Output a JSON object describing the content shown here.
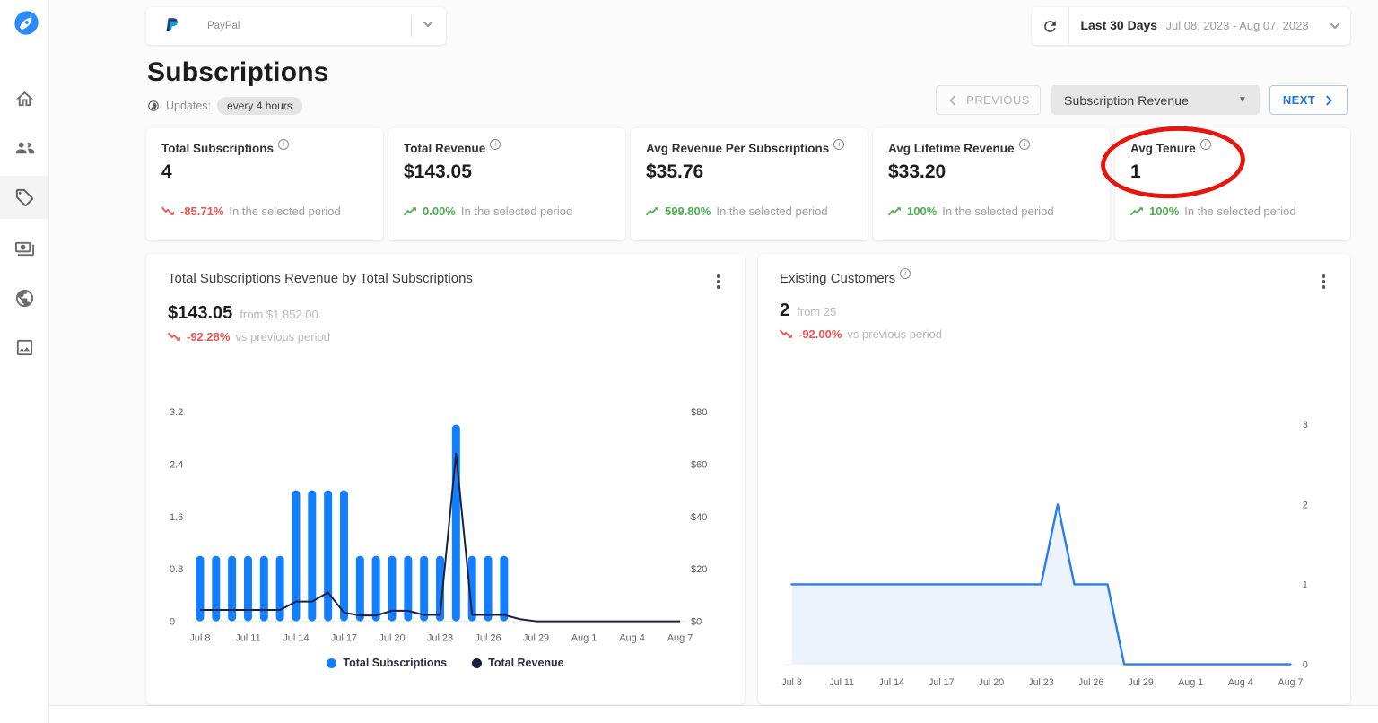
{
  "topbar": {
    "source": {
      "name": "PayPal"
    },
    "daterange": {
      "preset": "Last 30 Days",
      "range": "Jul 08, 2023 - Aug 07, 2023"
    }
  },
  "header": {
    "title": "Subscriptions",
    "updates_label": "Updates:",
    "updates_value": "every 4 hours"
  },
  "controls": {
    "previous_label": "PREVIOUS",
    "metric_selector": "Subscription Revenue",
    "next_label": "NEXT"
  },
  "kpis": [
    {
      "title": "Total Subscriptions",
      "value": "4",
      "trend": "-85.71%",
      "trend_dir": "down",
      "trend_icon": "#trend-down",
      "note": "In the selected period"
    },
    {
      "title": "Total Revenue",
      "value": "$143.05",
      "trend": "0.00%",
      "trend_dir": "up",
      "trend_icon": "#trend-up",
      "note": "In the selected period"
    },
    {
      "title": "Avg Revenue Per Subscriptions",
      "value": "$35.76",
      "trend": "599.80%",
      "trend_dir": "up",
      "trend_icon": "#trend-up",
      "note": "In the selected period"
    },
    {
      "title": "Avg Lifetime Revenue",
      "value": "$33.20",
      "trend": "100%",
      "trend_dir": "up",
      "trend_icon": "#trend-up",
      "note": "In the selected period"
    },
    {
      "title": "Avg Tenure",
      "value": "1",
      "trend": "100%",
      "trend_dir": "up",
      "trend_icon": "#trend-up",
      "note": "In the selected period"
    }
  ],
  "annotation": {
    "type": "hand-drawn-ellipse",
    "target": "Avg Tenure KPI",
    "color": "#e8150e"
  },
  "charts": {
    "left": {
      "title": "Total Subscriptions Revenue by Total Subscriptions",
      "value": "$143.05",
      "compare": "from $1,852.00",
      "trend": "-92.28%",
      "trend_dir": "down",
      "trend_icon": "#trend-down",
      "trend_note": "vs previous period"
    },
    "right": {
      "title": "Existing Customers",
      "value": "2",
      "compare": "from 25",
      "trend": "-92.00%",
      "trend_dir": "down",
      "trend_icon": "#trend-down",
      "trend_note": "vs previous period"
    }
  },
  "chart_data": [
    {
      "type": "bar+line",
      "title": "Total Subscriptions Revenue by Total Subscriptions",
      "x": [
        "Jul 8",
        "Jul 9",
        "Jul 10",
        "Jul 11",
        "Jul 12",
        "Jul 13",
        "Jul 14",
        "Jul 15",
        "Jul 16",
        "Jul 17",
        "Jul 18",
        "Jul 19",
        "Jul 20",
        "Jul 21",
        "Jul 22",
        "Jul 23",
        "Jul 24",
        "Jul 25",
        "Jul 26",
        "Jul 27",
        "Jul 28",
        "Jul 29",
        "Jul 30",
        "Jul 31",
        "Aug 1",
        "Aug 2",
        "Aug 3",
        "Aug 4",
        "Aug 5",
        "Aug 6",
        "Aug 7"
      ],
      "x_tick_every": 3,
      "series": [
        {
          "name": "Total Subscriptions",
          "type": "bar",
          "axis": "left",
          "color": "#117fff",
          "values": [
            1,
            1,
            1,
            1,
            1,
            1,
            2,
            2,
            2,
            2,
            1,
            1,
            1,
            1,
            1,
            1,
            3,
            1,
            1,
            1,
            0,
            0,
            0,
            0,
            0,
            0,
            0,
            0,
            0,
            0,
            0
          ]
        },
        {
          "name": "Total Revenue",
          "type": "line",
          "axis": "right",
          "color": "#1b2142",
          "values": [
            4.3,
            4.3,
            4.3,
            4.3,
            4.3,
            4.3,
            7.5,
            7.5,
            11,
            3.3,
            2.2,
            2.2,
            4,
            4,
            2.4,
            2.4,
            64,
            2.4,
            2.4,
            2.4,
            0.8,
            0,
            0,
            0,
            0,
            0,
            0,
            0,
            0,
            0,
            0
          ]
        }
      ],
      "left_axis": {
        "ticks": [
          0,
          0.8,
          1.6,
          2.4,
          3.2
        ],
        "max": 3.2
      },
      "right_axis": {
        "tick_labels": [
          "$0",
          "$20",
          "$40",
          "$60",
          "$80"
        ],
        "tick_values": [
          0,
          20,
          40,
          60,
          80
        ],
        "max": 80
      },
      "legend_position": "bottom",
      "grid": false
    },
    {
      "type": "area",
      "title": "Existing Customers",
      "x": [
        "Jul 8",
        "Jul 9",
        "Jul 10",
        "Jul 11",
        "Jul 12",
        "Jul 13",
        "Jul 14",
        "Jul 15",
        "Jul 16",
        "Jul 17",
        "Jul 18",
        "Jul 19",
        "Jul 20",
        "Jul 21",
        "Jul 22",
        "Jul 23",
        "Jul 24",
        "Jul 25",
        "Jul 26",
        "Jul 27",
        "Jul 28",
        "Jul 29",
        "Jul 30",
        "Jul 31",
        "Aug 1",
        "Aug 2",
        "Aug 3",
        "Aug 4",
        "Aug 5",
        "Aug 6",
        "Aug 7"
      ],
      "x_tick_every": 3,
      "series": [
        {
          "name": "Existing Customers",
          "color": "#2a7de8",
          "fill": "#edf3fc",
          "values": [
            1,
            1,
            1,
            1,
            1,
            1,
            1,
            1,
            1,
            1,
            1,
            1,
            1,
            1,
            1,
            1,
            2,
            1,
            1,
            1,
            0,
            0,
            0,
            0,
            0,
            0,
            0,
            0,
            0,
            0,
            0
          ]
        }
      ],
      "y_axis": {
        "ticks": [
          0,
          1,
          2,
          3
        ],
        "max": 3,
        "position": "right"
      },
      "grid": false
    }
  ],
  "colors": {
    "bar_blue": "#117fff",
    "line_navy": "#1b2142",
    "area_blue": "#2a7de8",
    "area_fill": "#edf3fc",
    "positive_green": "#4caf50",
    "negative_red": "#ef5350",
    "annotation_red": "#e8150e",
    "next_blue": "#1a73e8"
  }
}
